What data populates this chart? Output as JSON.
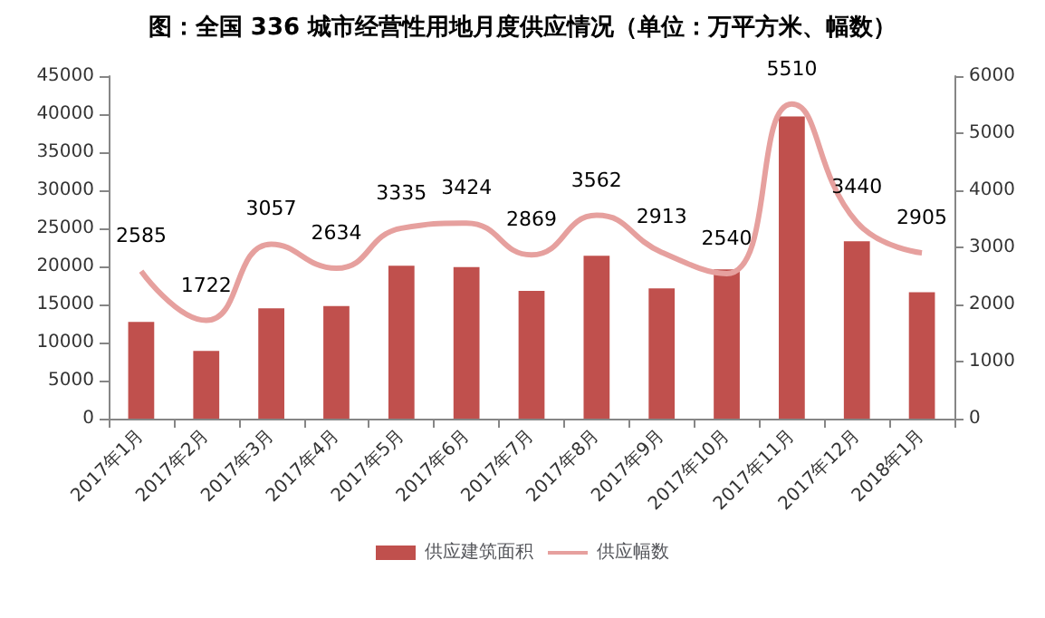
{
  "chart_data": {
    "type": "bar",
    "title": "图：全国 336 城市经营性用地月度供应情况（单位：万平方米、幅数）",
    "categories": [
      "2017年1月",
      "2017年2月",
      "2017年3月",
      "2017年4月",
      "2017年5月",
      "2017年6月",
      "2017年7月",
      "2017年8月",
      "2017年9月",
      "2017年10月",
      "2017年11月",
      "2017年12月",
      "2018年1月"
    ],
    "series": [
      {
        "name": "供应建筑面积",
        "color": "#c0504d",
        "values": [
          12700,
          8900,
          14500,
          14800,
          20100,
          19900,
          16800,
          21400,
          17100,
          19600,
          39700,
          23300,
          16600
        ]
      },
      {
        "name": "供应幅数",
        "type": "line",
        "axis": "y2",
        "color": "#e6a09e",
        "data_labels": true,
        "values": [
          2585,
          1722,
          3057,
          2634,
          3335,
          3424,
          2869,
          3562,
          2913,
          2540,
          5510,
          3440,
          2905
        ]
      }
    ],
    "ylim": [
      0,
      45000
    ],
    "yticks": [
      0,
      5000,
      10000,
      15000,
      20000,
      25000,
      30000,
      35000,
      40000,
      45000
    ],
    "y2lim": [
      0,
      6000
    ],
    "y2ticks": [
      0,
      1000,
      2000,
      3000,
      4000,
      5000,
      6000
    ],
    "grid": false,
    "legend": "bottom",
    "marker": "none"
  }
}
